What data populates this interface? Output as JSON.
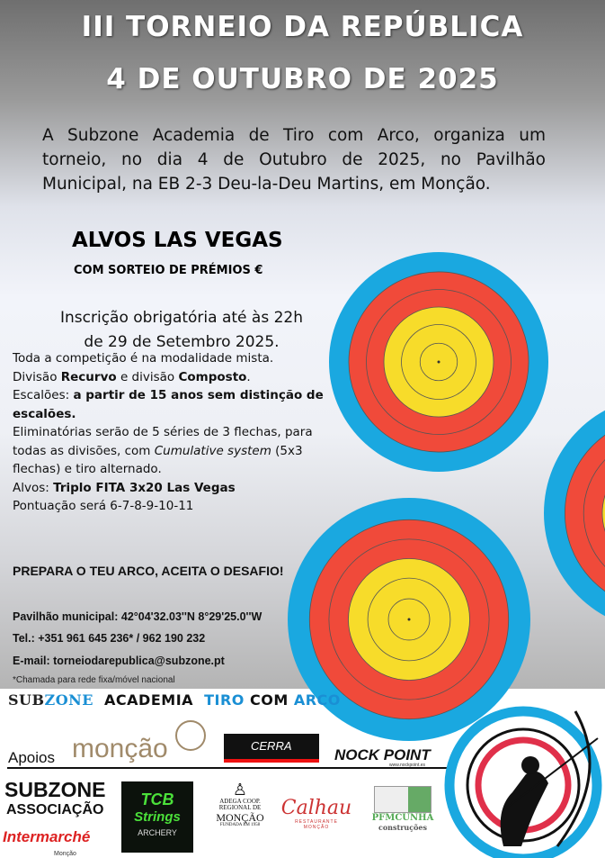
{
  "title_line1": "III TORNEIO DA REPÚBLICA",
  "title_line2": "4 DE OUTUBRO DE 2025",
  "intro": "A Subzone Academia de Tiro com Arco, organiza um torneio, no dia 4 de Outubro de 2025, no Pavilhão Municipal, na EB 2-3 Deu-la-Deu Martins, em Monção.",
  "heading": "ALVOS LAS VEGAS",
  "subheading": "COM SORTEIO DE PRÉMIOS €",
  "inscricao": {
    "line1": "Inscrição obrigatória até às 22h",
    "line2": "de 29 de Setembro 2025."
  },
  "rules": {
    "l1": "Toda a competição é na modalidade mista.",
    "l2a": "Divisão ",
    "l2b": "Recurvo",
    "l2c": " e divisão ",
    "l2d": "Composto",
    "l2e": ".",
    "l3a": "Escalões: ",
    "l3b": "a partir de 15 anos sem distinção de escalões.",
    "l4a": "Eliminatórias serão de 5 séries de 3 flechas, para todas as divisões, com ",
    "l4b": "Cumulative system",
    "l4c": " (5x3 flechas) e tiro alternado.",
    "l5a": "Alvos:  ",
    "l5b": "Triplo FITA 3x20 Las Vegas",
    "l6": "Pontuação será 6-7-8-9-10-11"
  },
  "slogan": "PREPARA O TEU ARCO, ACEITA O DESAFIO!",
  "location": "Pavilhão municipal: 42°04'32.03''N 8°29'25.0''W",
  "phone": "Tel.: +351 961 645 236* / 962 190 232",
  "email": "E-mail: torneiodarepublica@subzone.pt",
  "note": "*Chamada para rede fixa/móvel nacional",
  "organizer": {
    "sub": "SUB",
    "zone": "ZONE",
    "academia": "ACADEMIA",
    "tiro": "TIRO ",
    "com": "COM ",
    "arco": "ARCO"
  },
  "apoios_label": "Apoios",
  "sponsors": {
    "moncao": "monção",
    "cerra": "CERRA",
    "nockpoint": "NOCK POINT",
    "nock_url": "www.nockpoint.es",
    "subzone": "SUBZONE",
    "associacao": "ASSOCIAÇÃO",
    "intermarche": "Intermarché",
    "intermarche_sub": "Monção",
    "tcb1": "TCB",
    "tcb2": "Strings",
    "tcb3": "ARCHERY",
    "adega1": "ADEGA COOP.",
    "adega2": "REGIONAL DE",
    "adega3": "MONÇÃO",
    "adega4": "FUNDADA EM 1958",
    "calhau": "Calhau",
    "calhau_sub": "RESTAURANTE",
    "calhau_sub2": "MONÇÃO",
    "pfm": "PFMCUNHA",
    "pfm_sub": "construções"
  },
  "colors": {
    "target_blue": "#1aa8e0",
    "target_red": "#f04a3a",
    "target_yellow": "#f7dc2a",
    "blue_text": "#1a8fd4"
  }
}
